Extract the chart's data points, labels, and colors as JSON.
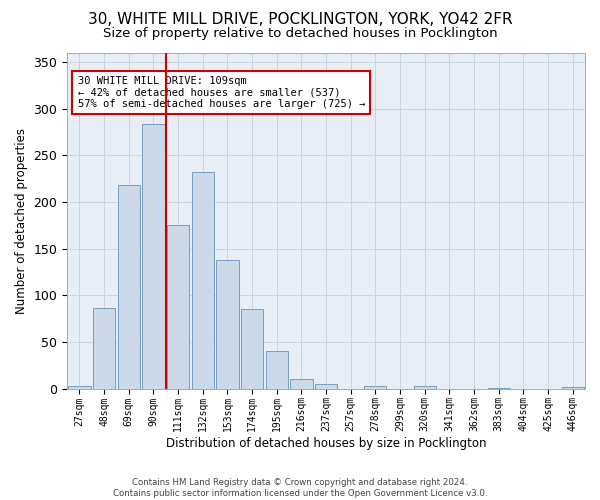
{
  "title1": "30, WHITE MILL DRIVE, POCKLINGTON, YORK, YO42 2FR",
  "title2": "Size of property relative to detached houses in Pocklington",
  "xlabel": "Distribution of detached houses by size in Pocklington",
  "ylabel": "Number of detached properties",
  "bin_labels": [
    "27sqm",
    "48sqm",
    "69sqm",
    "90sqm",
    "111sqm",
    "132sqm",
    "153sqm",
    "174sqm",
    "195sqm",
    "216sqm",
    "237sqm",
    "257sqm",
    "278sqm",
    "299sqm",
    "320sqm",
    "341sqm",
    "362sqm",
    "383sqm",
    "404sqm",
    "425sqm",
    "446sqm"
  ],
  "bar_heights": [
    3,
    86,
    218,
    283,
    175,
    232,
    138,
    85,
    40,
    10,
    5,
    0,
    3,
    0,
    3,
    0,
    0,
    1,
    0,
    0,
    2
  ],
  "bar_color": "#ccd9e8",
  "bar_edge_color": "#7a9cbf",
  "vline_color": "#cc0000",
  "annotation_text": "30 WHITE MILL DRIVE: 109sqm\n← 42% of detached houses are smaller (537)\n57% of semi-detached houses are larger (725) →",
  "annotation_box_color": "#ffffff",
  "annotation_box_edge": "#cc0000",
  "grid_color": "#c8d4e4",
  "bg_color": "#e8eef6",
  "footer": "Contains HM Land Registry data © Crown copyright and database right 2024.\nContains public sector information licensed under the Open Government Licence v3.0.",
  "ylim": [
    0,
    360
  ],
  "title1_fontsize": 11,
  "title2_fontsize": 9.5,
  "yticks": [
    0,
    50,
    100,
    150,
    200,
    250,
    300,
    350
  ]
}
